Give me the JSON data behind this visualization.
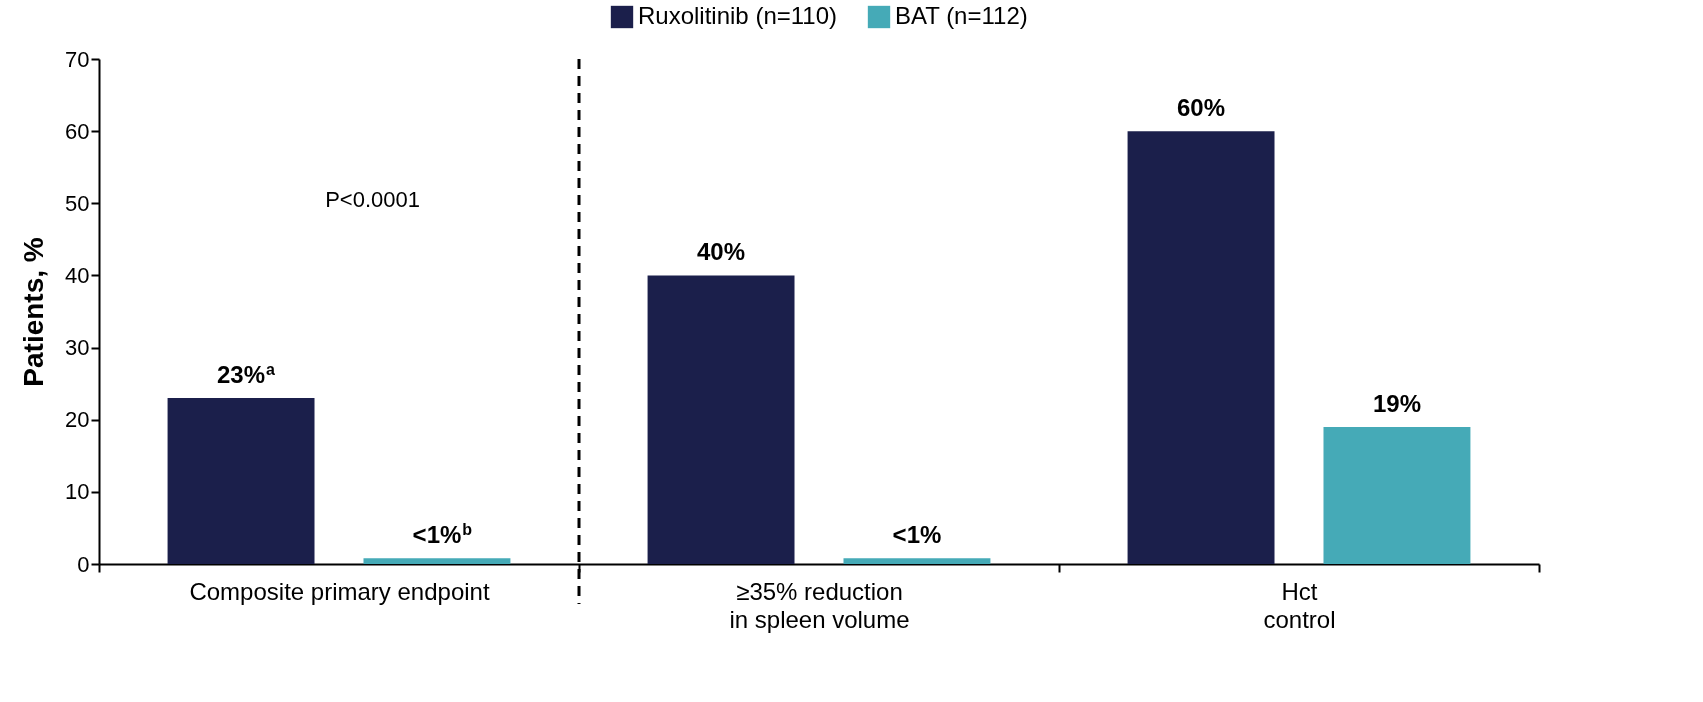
{
  "chart_data": {
    "type": "bar",
    "categories": [
      "Composite primary endpoint",
      "≥35% reduction\nin spleen volume",
      "Hct\ncontrol"
    ],
    "ylabel": "Patients, %",
    "ylim": [
      0,
      70
    ],
    "yticks": [
      0,
      10,
      20,
      30,
      40,
      50,
      60,
      70
    ],
    "grid": false,
    "legend": "top",
    "series": [
      {
        "name": "Ruxolitinib (n=110)",
        "color": "#1b1f4b",
        "values": [
          23,
          40,
          60
        ],
        "value_labels": [
          "23%$^{a}$",
          "40%",
          "60%"
        ]
      },
      {
        "name": "BAT (n=112)",
        "color": "#45aab7",
        "values": [
          0.8,
          0.8,
          19
        ],
        "value_labels": [
          "<1%$^{b}$",
          "<1%",
          "19%"
        ]
      }
    ],
    "annotations": [
      "P<0.0001"
    ]
  }
}
